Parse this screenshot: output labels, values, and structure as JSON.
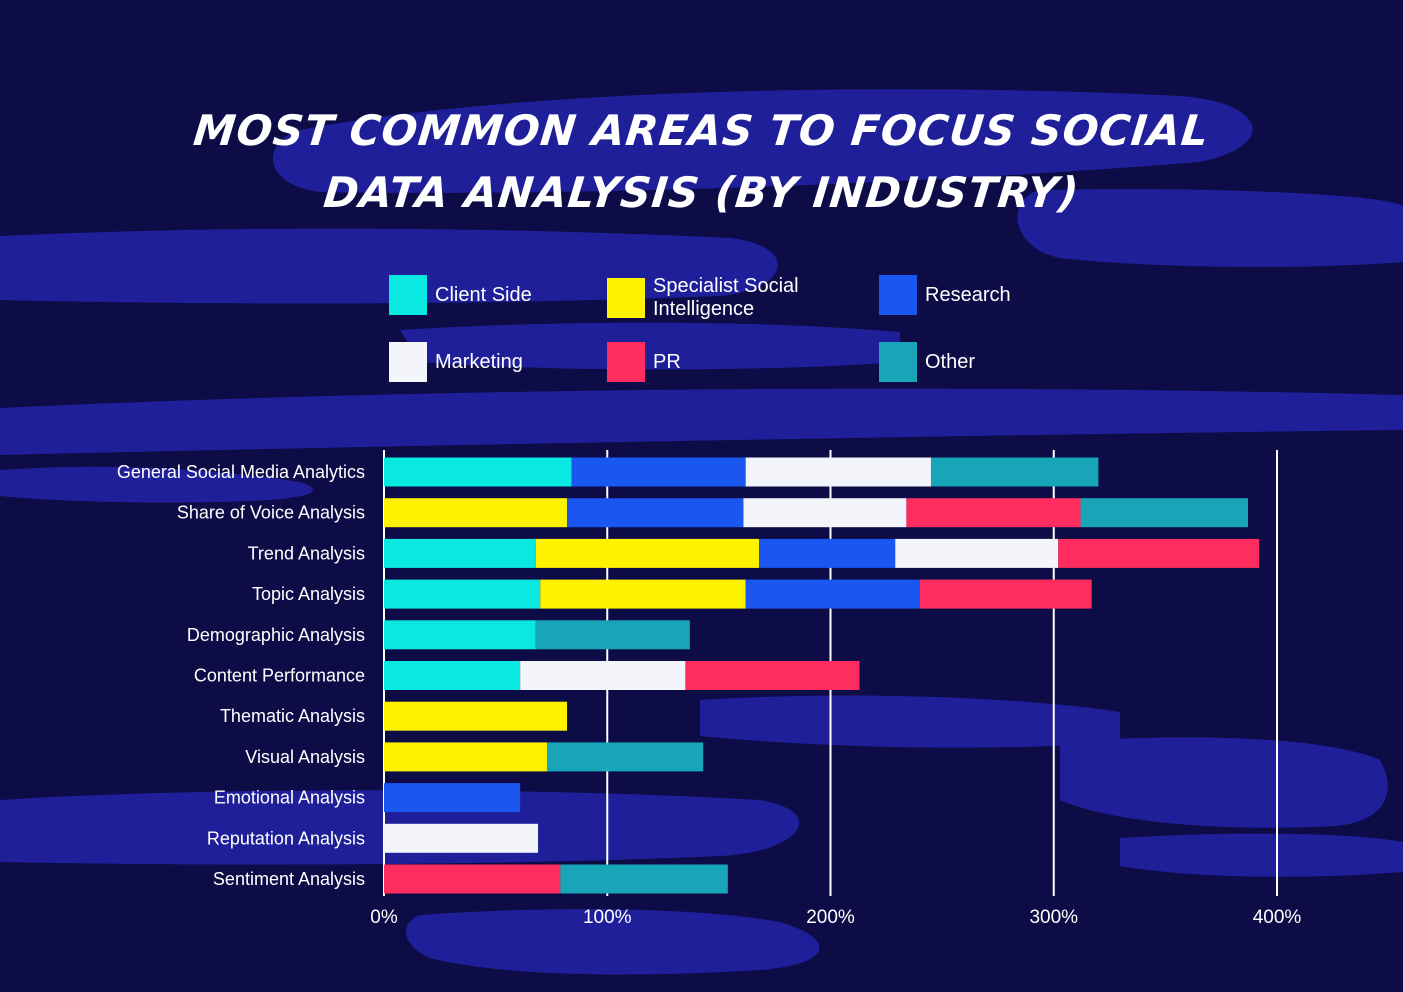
{
  "title_line1": "MOST COMMON AREAS TO FOCUS SOCIAL",
  "title_line2": "DATA ANALYSIS (BY INDUSTRY)",
  "colors": {
    "background": "#0e0c47",
    "brush": "#1f1f9a",
    "client_side": "#0ae8e2",
    "specialist": "#fff200",
    "research": "#1a56f0",
    "marketing": "#f3f5fb",
    "pr": "#ff2d5f",
    "other": "#18a5b8",
    "grid": "#ffffff"
  },
  "chart_data": {
    "type": "bar",
    "orientation": "horizontal",
    "stacked": true,
    "categories": [
      "General Social Media Analytics",
      "Share of Voice Analysis",
      "Trend Analysis",
      "Topic Analysis",
      "Demographic Analysis",
      "Content Performance",
      "Thematic Analysis",
      "Visual Analysis",
      "Emotional Analysis",
      "Reputation Analysis",
      "Sentiment Analysis"
    ],
    "series": [
      {
        "name": "Client Side",
        "color": "#0ae8e2",
        "values": [
          84,
          0,
          68,
          70,
          68,
          61,
          0,
          0,
          0,
          0,
          0
        ]
      },
      {
        "name": "Specialist Social Intelligence",
        "color": "#fff200",
        "values": [
          0,
          82,
          100,
          92,
          0,
          0,
          82,
          73,
          0,
          0,
          0
        ]
      },
      {
        "name": "Research",
        "color": "#1a56f0",
        "values": [
          78,
          79,
          61,
          78,
          0,
          0,
          0,
          0,
          61,
          0,
          0
        ]
      },
      {
        "name": "Marketing",
        "color": "#f3f5fb",
        "values": [
          83,
          73,
          73,
          0,
          0,
          74,
          0,
          0,
          0,
          69,
          0
        ]
      },
      {
        "name": "PR",
        "color": "#ff2d5f",
        "values": [
          0,
          78,
          90,
          77,
          0,
          78,
          0,
          0,
          0,
          0,
          79
        ]
      },
      {
        "name": "Other",
        "color": "#18a5b8",
        "values": [
          75,
          75,
          0,
          0,
          69,
          0,
          0,
          70,
          0,
          0,
          75
        ]
      }
    ],
    "xlim": [
      0,
      400
    ],
    "x_ticks": [
      "0%",
      "100%",
      "200%",
      "300%",
      "400%"
    ],
    "x_tick_values": [
      0,
      100,
      200,
      300,
      400
    ],
    "grid": true,
    "legend_position": "top"
  }
}
